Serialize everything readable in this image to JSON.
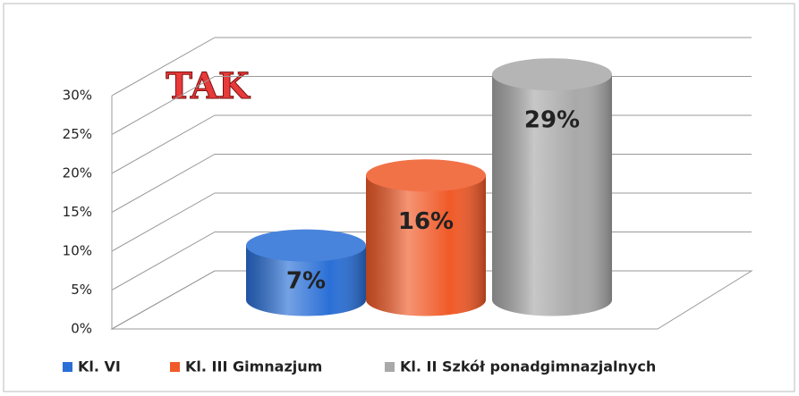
{
  "chart_data": {
    "type": "bar",
    "title": "TAK",
    "categories": [
      null
    ],
    "series": [
      {
        "name": "Kl. VI",
        "color": "#2a6fd6",
        "values": [
          7
        ],
        "value_labels": [
          "7%"
        ]
      },
      {
        "name": "Kl. III Gimnazjum",
        "color": "#f05a28",
        "values": [
          16
        ],
        "value_labels": [
          "16%"
        ]
      },
      {
        "name": "Kl. II Szkół ponadgimnazjalnych",
        "color": "#a9a9a9",
        "values": [
          29
        ],
        "value_labels": [
          "29%"
        ]
      }
    ],
    "ylim": [
      0,
      30
    ],
    "yticks": [
      {
        "value": 0,
        "label": "0%"
      },
      {
        "value": 5,
        "label": "5%"
      },
      {
        "value": 10,
        "label": "10%"
      },
      {
        "value": 15,
        "label": "15%"
      },
      {
        "value": 20,
        "label": "20%"
      },
      {
        "value": 25,
        "label": "25%"
      },
      {
        "value": 30,
        "label": "30%"
      }
    ],
    "grid": true
  }
}
